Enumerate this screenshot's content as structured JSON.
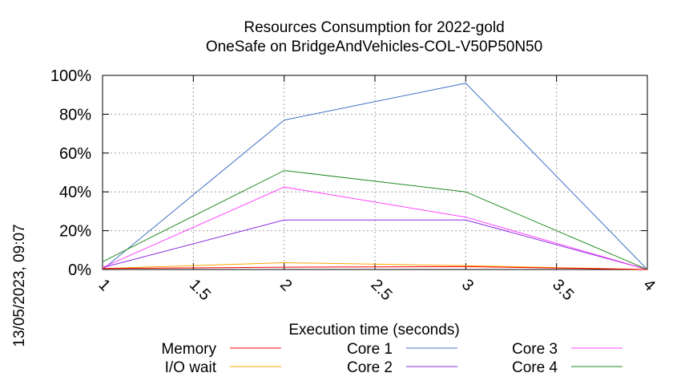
{
  "chart_data": {
    "type": "line",
    "title": "Resources Consumption for 2022-gold",
    "subtitle": "OneSafe on BridgeAndVehicles-COL-V50P50N50",
    "xlabel": "Execution time (seconds)",
    "ylabel": "",
    "xlim": [
      1,
      4
    ],
    "ylim": [
      0,
      100
    ],
    "x_ticks": [
      "1",
      "1.5",
      "2",
      "2.5",
      "3",
      "3.5",
      "4"
    ],
    "y_ticks": [
      "0%",
      "20%",
      "40%",
      "60%",
      "80%",
      "100%"
    ],
    "grid": true,
    "legend_position": "bottom",
    "side_note": "13/05/2023, 09:07",
    "series": [
      {
        "name": "Memory",
        "color": "#ff0000",
        "x": [
          1,
          2,
          3,
          4
        ],
        "y": [
          0.5,
          1.2,
          1.5,
          0
        ]
      },
      {
        "name": "I/O wait",
        "color": "#ffa500",
        "x": [
          1,
          2,
          3,
          4
        ],
        "y": [
          0.5,
          3.5,
          2.0,
          0
        ]
      },
      {
        "name": "Core 1",
        "color": "#4472c4",
        "x": [
          1,
          2,
          3,
          4
        ],
        "y": [
          0,
          77,
          96,
          0
        ]
      },
      {
        "name": "Core 2",
        "color": "#8a2be2",
        "x": [
          1,
          2,
          3,
          4
        ],
        "y": [
          1,
          25.5,
          25.5,
          0
        ]
      },
      {
        "name": "Core 3",
        "color": "#ff44ff",
        "x": [
          1,
          2,
          3,
          4
        ],
        "y": [
          1,
          42.5,
          27,
          0
        ]
      },
      {
        "name": "Core 4",
        "color": "#228b22",
        "x": [
          1,
          2,
          3,
          4
        ],
        "y": [
          4,
          51,
          40,
          0
        ]
      }
    ]
  }
}
